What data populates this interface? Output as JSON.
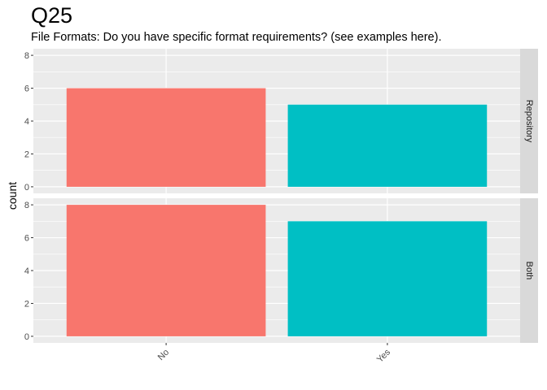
{
  "chart_data": {
    "type": "bar",
    "title": "Q25",
    "subtitle": "File Formats: Do you have specific format requirements? (see examples here).",
    "xlabel": "",
    "ylabel": "count",
    "categories": [
      "No",
      "Yes"
    ],
    "ylim": [
      0,
      8
    ],
    "yticks": [
      0,
      2,
      4,
      6,
      8
    ],
    "grid": true,
    "legend": "none",
    "colors": [
      "#F8766D",
      "#00BFC4"
    ],
    "panel_background": "#EBEBEB",
    "strip_background": "#D9D9D9",
    "facets": [
      {
        "label": "Repository",
        "values": [
          6,
          5
        ]
      },
      {
        "label": "Both",
        "values": [
          8,
          7
        ]
      }
    ]
  }
}
